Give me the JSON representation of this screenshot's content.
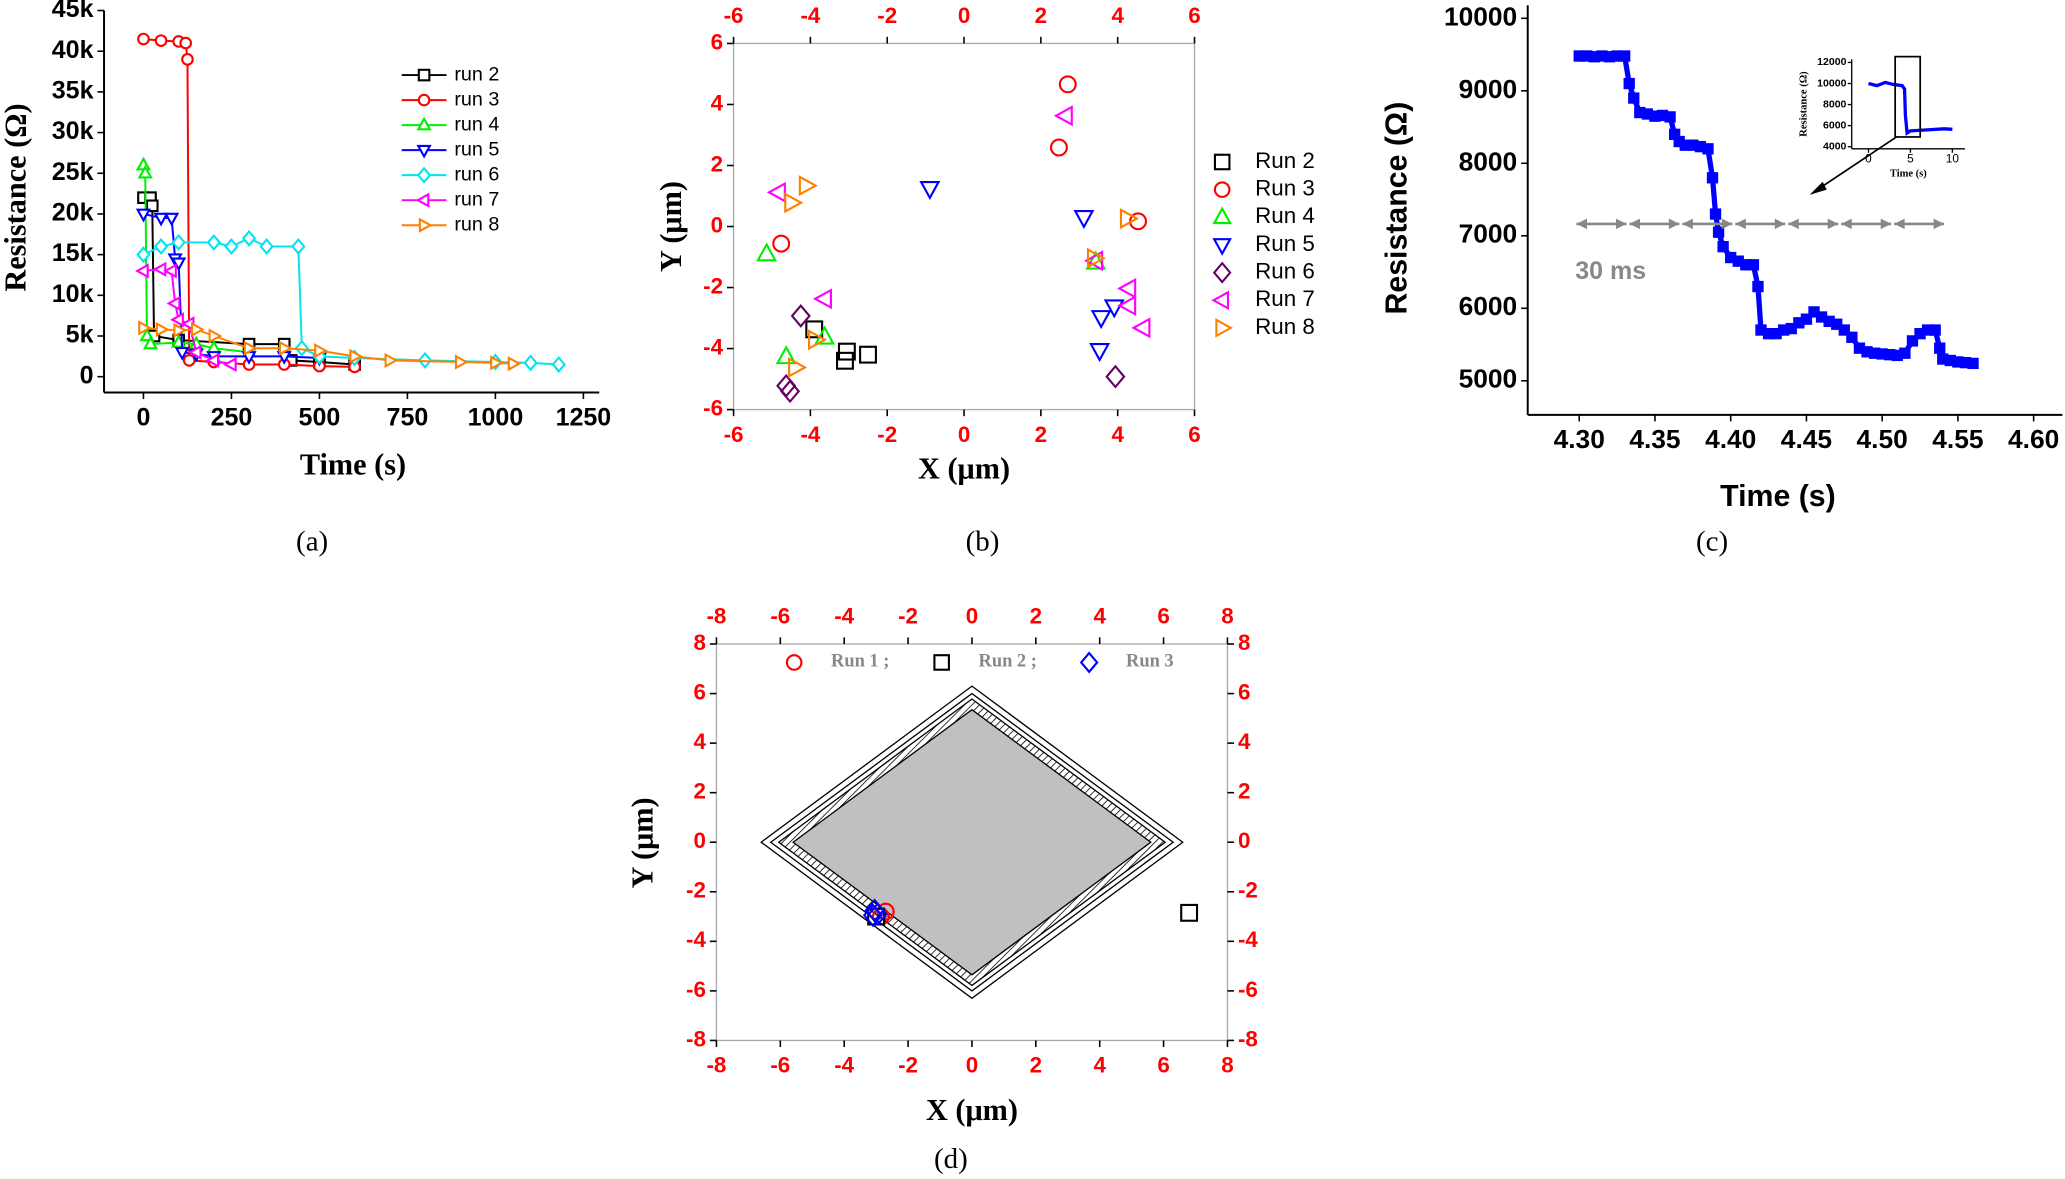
{
  "chart_data": [
    {
      "type": "line",
      "caption": "(a)",
      "xlabel": "Time (s)",
      "ylabel": "Resistance (Ω)",
      "xlim": [
        -112,
        1295
      ],
      "ylim": [
        -1940,
        45000
      ],
      "xticks": [
        0,
        250,
        500,
        750,
        1000,
        1250
      ],
      "yticks": [
        0,
        {
          "value": 5000,
          "label": "5k"
        },
        {
          "value": 10000,
          "label": "10k"
        },
        {
          "value": 15000,
          "label": "15k"
        },
        {
          "value": 20000,
          "label": "20k"
        },
        {
          "value": 25000,
          "label": "25k"
        },
        {
          "value": 30000,
          "label": "30k"
        },
        {
          "value": 35000,
          "label": "35k"
        },
        {
          "value": 40000,
          "label": "40k"
        },
        {
          "value": 45000,
          "label": "45k"
        }
      ],
      "legend": "upper right",
      "series": [
        {
          "name": "run 2",
          "color": "#000000",
          "marker": "square",
          "x": [
            0,
            20,
            25,
            30,
            100,
            300,
            400,
            420,
            500,
            600
          ],
          "values": [
            22000,
            22000,
            21000,
            5000,
            4500,
            4000,
            4000,
            2000,
            1800,
            1500
          ]
        },
        {
          "name": "run 3",
          "color": "#ff0000",
          "marker": "circle",
          "x": [
            0,
            50,
            100,
            120,
            125,
            130,
            200,
            300,
            400,
            500,
            600
          ],
          "values": [
            41500,
            41300,
            41200,
            41000,
            39000,
            2000,
            1800,
            1500,
            1500,
            1300,
            1200
          ]
        },
        {
          "name": "run 4",
          "color": "#00ee00",
          "marker": "up",
          "x": [
            0,
            5,
            10,
            20,
            100,
            150,
            200,
            300
          ],
          "values": [
            26000,
            25000,
            5000,
            4000,
            4200,
            4000,
            3500,
            3000
          ]
        },
        {
          "name": "run 5",
          "color": "#0000ff",
          "marker": "down",
          "x": [
            0,
            50,
            80,
            90,
            100,
            110,
            150,
            200,
            300,
            400,
            500
          ],
          "values": [
            20000,
            19500,
            19500,
            14500,
            14000,
            3000,
            2800,
            2500,
            2500,
            2500,
            2300
          ]
        },
        {
          "name": "run 6",
          "color": "#00e5ee",
          "marker": "diamond",
          "x": [
            0,
            50,
            100,
            200,
            250,
            300,
            350,
            440,
            450,
            500,
            600,
            800,
            1000,
            1100,
            1180
          ],
          "values": [
            15000,
            16000,
            16500,
            16500,
            16000,
            17000,
            16000,
            16000,
            3500,
            2500,
            2300,
            2000,
            1800,
            1700,
            1500
          ]
        },
        {
          "name": "run 7",
          "color": "#ff00ff",
          "marker": "left",
          "x": [
            0,
            50,
            80,
            90,
            100,
            130,
            150,
            200,
            250
          ],
          "values": [
            13000,
            13200,
            13000,
            9000,
            7000,
            6500,
            3000,
            2000,
            1500
          ]
        },
        {
          "name": "run 8",
          "color": "#ff8000",
          "marker": "right",
          "x": [
            0,
            50,
            100,
            150,
            200,
            300,
            400,
            500,
            600,
            700,
            900,
            1000,
            1050
          ],
          "values": [
            6000,
            5800,
            5700,
            5800,
            5000,
            3500,
            3500,
            3200,
            2500,
            2000,
            1800,
            1700,
            1600
          ]
        }
      ]
    },
    {
      "type": "scatter",
      "caption": "(b)",
      "xlabel": "X (μm)",
      "ylabel": "Y (μm)",
      "xlim": [
        -6,
        6
      ],
      "ylim": [
        -6,
        6
      ],
      "xticks": [
        -6,
        -4,
        -2,
        0,
        2,
        4,
        6
      ],
      "yticks": [
        -6,
        -4,
        -2,
        0,
        2,
        4,
        6
      ],
      "tick_color": "#ff0000",
      "legend": "right",
      "series": [
        {
          "name": "Run 2",
          "color": "#000000",
          "marker": "square",
          "x": [
            -3.9,
            -3.05,
            -3.1,
            -2.5
          ],
          "values": [
            -3.37,
            -4.1,
            -4.4,
            -4.2
          ]
        },
        {
          "name": "Run 3",
          "color": "#ff0000",
          "marker": "circle",
          "x": [
            -4.76,
            2.7,
            2.47,
            4.53
          ],
          "values": [
            -0.56,
            4.66,
            2.59,
            0.17
          ]
        },
        {
          "name": "Run 4",
          "color": "#00ee00",
          "marker": "up",
          "x": [
            -5.14,
            -4.63,
            -3.63,
            3.43
          ],
          "values": [
            -0.9,
            -4.27,
            -3.63,
            -1.17
          ]
        },
        {
          "name": "Run 5",
          "color": "#0000ff",
          "marker": "down",
          "x": [
            -0.89,
            3.12,
            3.57,
            3.91,
            3.53
          ],
          "values": [
            1.25,
            0.3,
            -2.98,
            -2.63,
            -4.06
          ]
        },
        {
          "name": "Run 6",
          "color": "#660066",
          "marker": "diamond",
          "x": [
            -4.25,
            -4.63,
            -4.53,
            3.94
          ],
          "values": [
            -2.93,
            -5.22,
            -5.4,
            -4.92
          ]
        },
        {
          "name": "Run 7",
          "color": "#ff00ff",
          "marker": "left",
          "x": [
            -4.83,
            -3.63,
            2.64,
            3.43,
            4.29,
            4.29,
            4.66
          ],
          "values": [
            1.12,
            -2.37,
            3.63,
            -1.12,
            -2.03,
            -2.59,
            -3.32
          ]
        },
        {
          "name": "Run 8",
          "color": "#ff8000",
          "marker": "right",
          "x": [
            -4.49,
            -4.11,
            -3.87,
            -4.39,
            4.25,
            3.39
          ],
          "values": [
            0.78,
            1.34,
            -3.71,
            -4.62,
            0.26,
            -1.04
          ]
        }
      ]
    },
    {
      "type": "line",
      "caption": "(c)",
      "xlabel": "Time (s)",
      "ylabel": "Resistance (Ω)",
      "annotation": "30 ms",
      "xlim": [
        4.266,
        4.619
      ],
      "ylim": [
        4530,
        10180
      ],
      "xticks": [
        {
          "value": 4.3,
          "label": "4.30"
        },
        4.35,
        {
          "value": 4.4,
          "label": "4.40"
        },
        4.45,
        {
          "value": 4.5,
          "label": "4.50"
        },
        4.55,
        {
          "value": 4.6,
          "label": "4.60"
        }
      ],
      "yticks": [
        5000,
        6000,
        7000,
        8000,
        9000,
        10000
      ],
      "series": [
        {
          "color": "#0000ff",
          "marker": "square",
          "filled": true,
          "x": [
            4.3,
            4.305,
            4.31,
            4.315,
            4.32,
            4.325,
            4.33,
            4.333,
            4.336,
            4.34,
            4.345,
            4.35,
            4.355,
            4.36,
            4.363,
            4.366,
            4.37,
            4.375,
            4.38,
            4.385,
            4.388,
            4.39,
            4.392,
            4.395,
            4.4,
            4.405,
            4.41,
            4.415,
            4.418,
            4.42,
            4.425,
            4.43,
            4.435,
            4.44,
            4.445,
            4.45,
            4.455,
            4.46,
            4.465,
            4.47,
            4.475,
            4.48,
            4.485,
            4.49,
            4.495,
            4.5,
            4.505,
            4.51,
            4.515,
            4.52,
            4.525,
            4.53,
            4.535,
            4.538,
            4.54,
            4.545,
            4.55,
            4.555,
            4.56
          ],
          "values": [
            9480,
            9480,
            9470,
            9480,
            9470,
            9480,
            9480,
            9100,
            8900,
            8700,
            8680,
            8650,
            8660,
            8640,
            8400,
            8300,
            8250,
            8250,
            8230,
            8200,
            7800,
            7300,
            7050,
            6850,
            6700,
            6650,
            6600,
            6600,
            6300,
            5700,
            5650,
            5650,
            5700,
            5720,
            5800,
            5850,
            5950,
            5880,
            5820,
            5780,
            5700,
            5600,
            5450,
            5400,
            5380,
            5370,
            5360,
            5350,
            5380,
            5550,
            5650,
            5700,
            5700,
            5450,
            5300,
            5280,
            5260,
            5250,
            5240
          ]
        }
      ],
      "inset": {
        "xlabel": "Time (s)",
        "ylabel": "Resistance (Ω)",
        "xlim": [
          -2,
          11.5
        ],
        "ylim": [
          3800,
          12300
        ],
        "xticks": [
          0,
          5,
          10
        ],
        "yticks": [
          4000,
          6000,
          8000,
          10000,
          12000
        ],
        "color": "#0000ff",
        "x": [
          0,
          1,
          2,
          3,
          4,
          4.3,
          4.4,
          4.6,
          5,
          7,
          9,
          10
        ],
        "values": [
          10000,
          9800,
          10100,
          9900,
          9800,
          9480,
          7000,
          5300,
          5500,
          5600,
          5700,
          5650
        ]
      }
    },
    {
      "type": "scatter",
      "caption": "(d)",
      "xlabel": "X (μm)",
      "ylabel": "Y (μm)",
      "xlim": [
        -8,
        8
      ],
      "ylim": [
        -8,
        8
      ],
      "xticks": [
        -8,
        -6,
        -4,
        -2,
        0,
        2,
        4,
        6,
        8
      ],
      "yticks": [
        -8,
        -6,
        -4,
        -2,
        0,
        2,
        4,
        6,
        8
      ],
      "tick_color": "#ff0000",
      "legend": "top",
      "series": [
        {
          "name": "Run 1 ;",
          "color": "#ff0000",
          "marker": "circle",
          "x": [
            -2.7,
            -2.85
          ],
          "values": [
            -2.8,
            -3.0
          ]
        },
        {
          "name": "Run 2 ;",
          "color": "#000000",
          "marker": "square",
          "x": [
            6.8,
            -3.0
          ],
          "values": [
            -2.85,
            -3.0
          ]
        },
        {
          "name": "Run 3",
          "color": "#0000ff",
          "marker": "diamond",
          "x": [
            -3.05,
            -3.1,
            -2.95
          ],
          "values": [
            -2.75,
            -2.95,
            -2.9
          ]
        }
      ]
    }
  ]
}
